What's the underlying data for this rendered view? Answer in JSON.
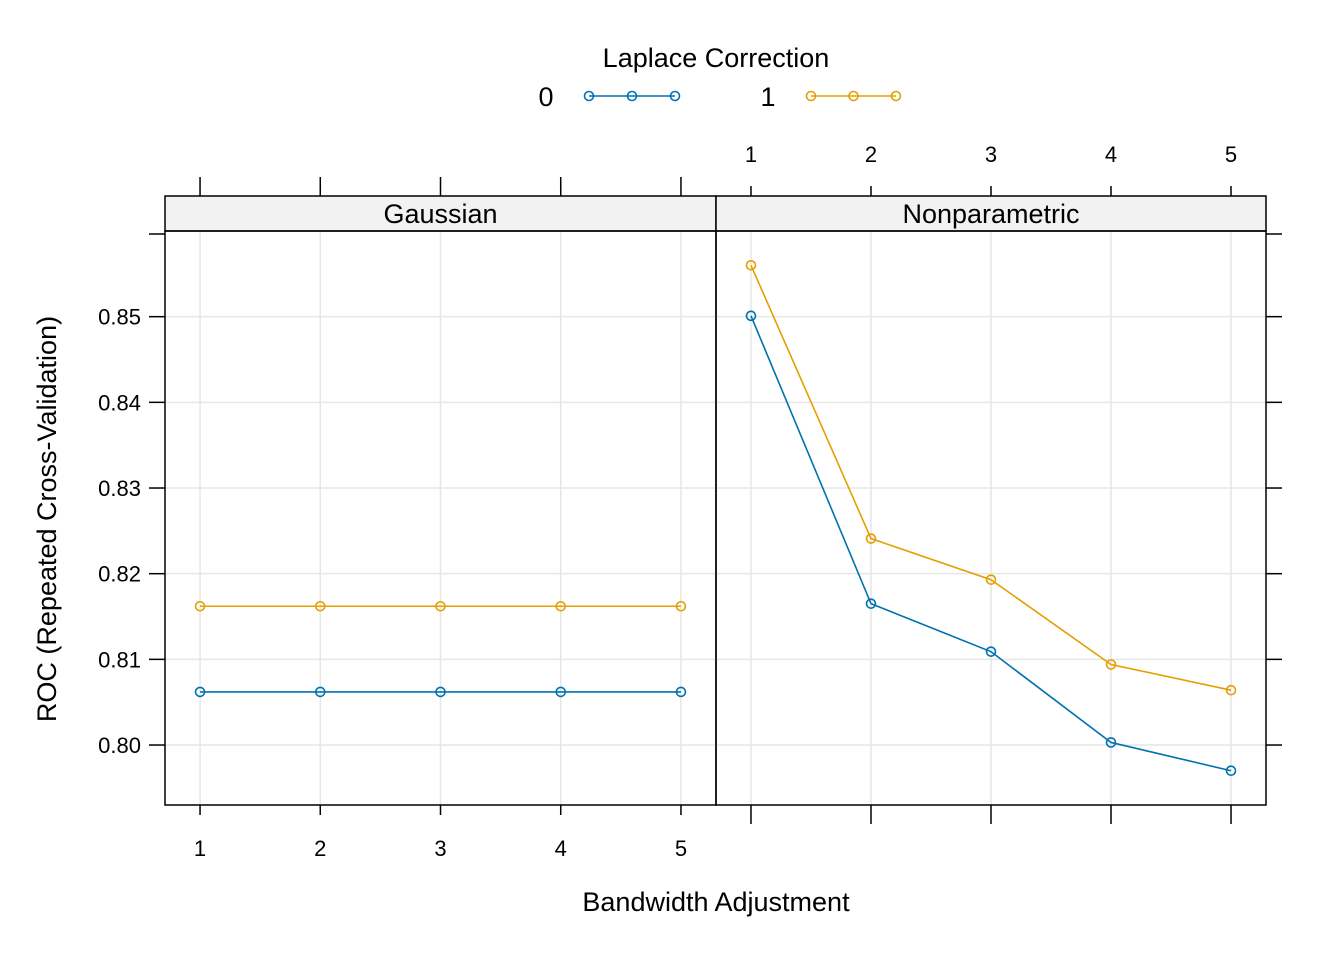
{
  "chart_data": {
    "type": "line",
    "legend": {
      "title": "Laplace Correction",
      "placement": "top",
      "entries": [
        {
          "label": "0",
          "color": "#0072B2"
        },
        {
          "label": "1",
          "color": "#E69F00"
        }
      ]
    },
    "xlabel": "Bandwidth Adjustment",
    "ylabel": "ROC (Repeated Cross-Validation)",
    "x": [
      1,
      2,
      3,
      4,
      5
    ],
    "x_ticks": [
      "1",
      "2",
      "3",
      "4",
      "5"
    ],
    "y_ticks": [
      "0.80",
      "0.81",
      "0.82",
      "0.83",
      "0.84",
      "0.85"
    ],
    "ylim": [
      0.793,
      0.86
    ],
    "grid": true,
    "panels": [
      {
        "name": "Gaussian",
        "series": [
          {
            "group": "0",
            "values": [
              0.8062,
              0.8062,
              0.8062,
              0.8062,
              0.8062
            ]
          },
          {
            "group": "1",
            "values": [
              0.8162,
              0.8162,
              0.8162,
              0.8162,
              0.8162
            ]
          }
        ]
      },
      {
        "name": "Nonparametric",
        "series": [
          {
            "group": "0",
            "values": [
              0.8501,
              0.8165,
              0.8109,
              0.8003,
              0.797
            ]
          },
          {
            "group": "1",
            "values": [
              0.856,
              0.8241,
              0.8193,
              0.8094,
              0.8064
            ]
          }
        ]
      }
    ]
  }
}
